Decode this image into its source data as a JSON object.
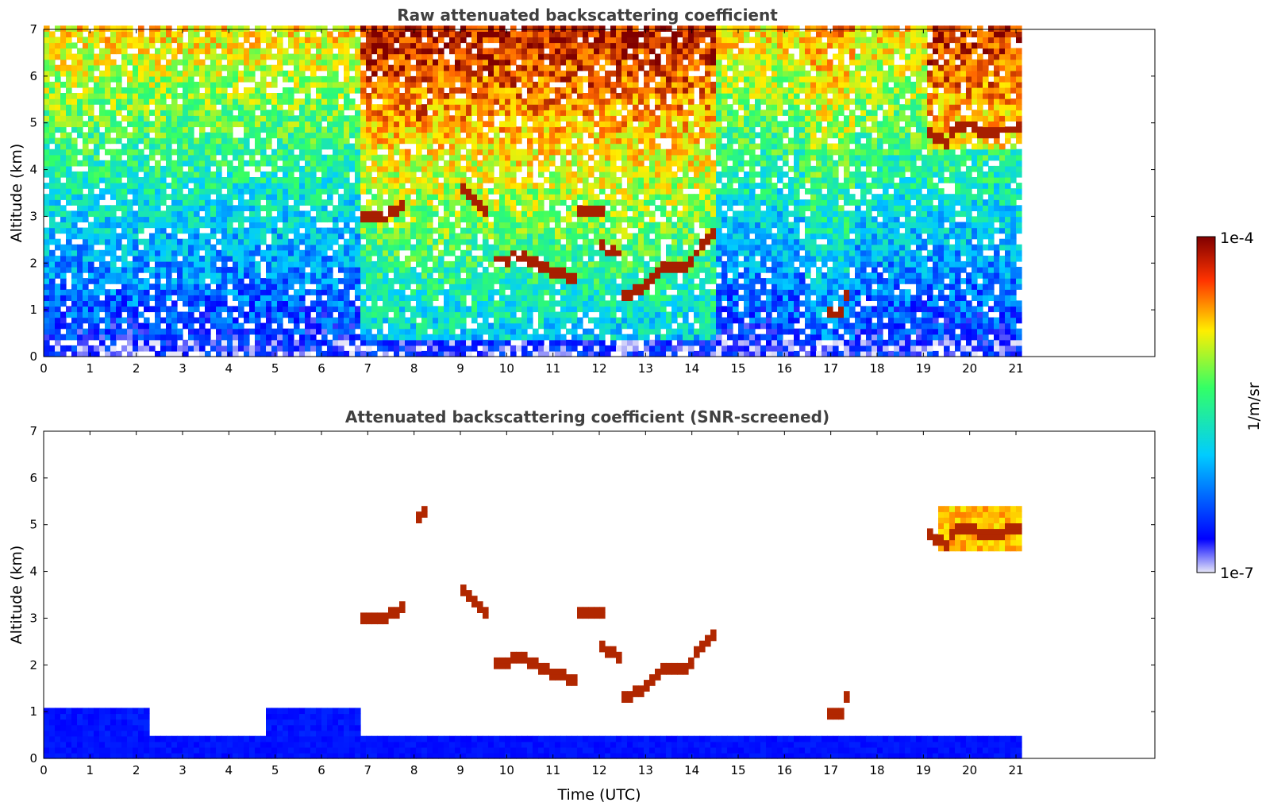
{
  "chart_data": [
    {
      "type": "heatmap",
      "title": "Raw attenuated backscattering coefficient",
      "ylabel": "Altitude (km)",
      "xlabel": "",
      "xlim": [
        0,
        24
      ],
      "ylim": [
        0,
        7
      ],
      "xticks": [
        "0",
        "1",
        "2",
        "3",
        "4",
        "5",
        "6",
        "7",
        "8",
        "9",
        "10",
        "11",
        "12",
        "13",
        "14",
        "15",
        "16",
        "17",
        "18",
        "19",
        "20",
        "21"
      ],
      "yticks": [
        "0",
        "1",
        "2",
        "3",
        "4",
        "5",
        "6",
        "7"
      ],
      "data_end_time": 21.1,
      "features": [
        {
          "name": "surface-layer",
          "x": [
            0,
            21.1
          ],
          "y": [
            0,
            0.9
          ],
          "level": "low"
        },
        {
          "name": "cloud-layer-a",
          "x": [
            6.8,
            14.4
          ],
          "y": [
            1.2,
            3.3
          ],
          "level": "high"
        },
        {
          "name": "cloud-layer-b",
          "x": [
            16.5,
            17.4
          ],
          "y": [
            0.8,
            1.8
          ],
          "level": "high"
        },
        {
          "name": "cloud-layer-c",
          "x": [
            19.0,
            21.1
          ],
          "y": [
            4.4,
            5.2
          ],
          "level": "high"
        }
      ]
    },
    {
      "type": "heatmap",
      "title": "Attenuated backscattering coefficient (SNR-screened)",
      "ylabel": "Altitude (km)",
      "xlabel": "Time (UTC)",
      "xlim": [
        0,
        24
      ],
      "ylim": [
        0,
        7
      ],
      "xticks": [
        "0",
        "1",
        "2",
        "3",
        "4",
        "5",
        "6",
        "7",
        "8",
        "9",
        "10",
        "11",
        "12",
        "13",
        "14",
        "15",
        "16",
        "17",
        "18",
        "19",
        "20",
        "21"
      ],
      "yticks": [
        "0",
        "1",
        "2",
        "3",
        "4",
        "5",
        "6",
        "7"
      ],
      "data_end_time": 21.1
    }
  ],
  "colorbar": {
    "max_label": "1e-4",
    "min_label": "1e-7",
    "unit_label": "1/m/sr",
    "colormap": [
      "#e6e6f8",
      "#0000ff",
      "#00ccff",
      "#33ff66",
      "#ffee00",
      "#ff6600",
      "#800000"
    ]
  }
}
